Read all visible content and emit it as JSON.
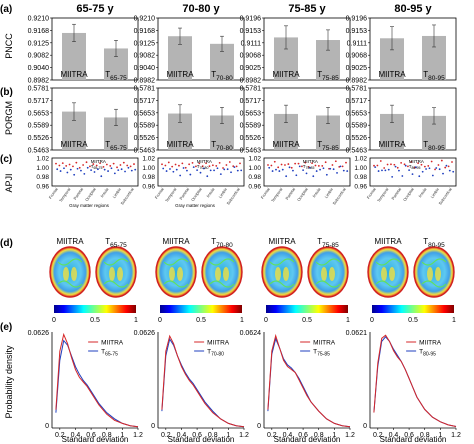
{
  "panel_labels": [
    "(a)",
    "(b)",
    "(c)",
    "(d)",
    "(e)"
  ],
  "age_groups": [
    "65-75 y",
    "70-80 y",
    "75-85 y",
    "80-95 y"
  ],
  "colors": {
    "bar": "#b4b4b4",
    "miitra": "#d62728",
    "t": "#1f3fbf",
    "axis": "#000000"
  },
  "chart_data": [
    {
      "type": "bar",
      "panel": "a",
      "ylabel": "PNCC",
      "panels": [
        {
          "ylim": [
            0.8982,
            0.921
          ],
          "ticks": [
            "0.9210",
            "0.9168",
            "0.9125",
            "0.9082",
            "0.9040",
            "0.8982"
          ],
          "categories": [
            "MIITRA",
            "T"
          ],
          "sub": [
            "",
            "65-75"
          ],
          "values": [
            0.9155,
            0.9098
          ],
          "errors": [
            0.0032,
            0.003
          ]
        },
        {
          "ylim": [
            0.8982,
            0.921
          ],
          "ticks": [
            "0.9210",
            "0.9168",
            "0.9125",
            "0.9082",
            "0.9040",
            "0.8982"
          ],
          "categories": [
            "MIITRA",
            "T"
          ],
          "sub": [
            "",
            "70-80"
          ],
          "values": [
            0.9143,
            0.9115
          ],
          "errors": [
            0.003,
            0.0028
          ]
        },
        {
          "ylim": [
            0.8982,
            0.9196
          ],
          "ticks": [
            "0.9196",
            "0.9153",
            "0.9111",
            "0.9068",
            "0.9025",
            "0.8982"
          ],
          "categories": [
            "MIITRA",
            "T"
          ],
          "sub": [
            "",
            "75-85"
          ],
          "values": [
            0.9129,
            0.912
          ],
          "errors": [
            0.004,
            0.0035
          ]
        },
        {
          "ylim": [
            0.8982,
            0.9196
          ],
          "ticks": [
            "0.9196",
            "0.9153",
            "0.9111",
            "0.9068",
            "0.9025",
            "0.8982"
          ],
          "categories": [
            "MIITRA",
            "T"
          ],
          "sub": [
            "",
            "80-95"
          ],
          "values": [
            0.9126,
            0.9134
          ],
          "errors": [
            0.004,
            0.0038
          ]
        }
      ]
    },
    {
      "type": "bar",
      "panel": "b",
      "ylabel": "PORGM",
      "panels": [
        {
          "ylim": [
            0.5463,
            0.5781
          ],
          "ticks": [
            "0.5781",
            "0.5717",
            "0.5653",
            "0.5589",
            "0.5526",
            "0.5463"
          ],
          "categories": [
            "MIITRA",
            "T"
          ],
          "sub": [
            "",
            "65-75"
          ],
          "values": [
            0.566,
            0.563
          ],
          "errors": [
            0.0045,
            0.0042
          ]
        },
        {
          "ylim": [
            0.5463,
            0.5781
          ],
          "ticks": [
            "0.5781",
            "0.5717",
            "0.5653",
            "0.5589",
            "0.5526",
            "0.5463"
          ],
          "categories": [
            "MIITRA",
            "T"
          ],
          "sub": [
            "",
            "70-80"
          ],
          "values": [
            0.565,
            0.564
          ],
          "errors": [
            0.0045,
            0.0042
          ]
        },
        {
          "ylim": [
            0.5463,
            0.5781
          ],
          "ticks": [
            "0.5781",
            "0.5717",
            "0.5653",
            "0.5589",
            "0.5526",
            "0.5463"
          ],
          "categories": [
            "MIITRA",
            "T"
          ],
          "sub": [
            "",
            "75-85"
          ],
          "values": [
            0.5648,
            0.564
          ],
          "errors": [
            0.0045,
            0.0042
          ]
        },
        {
          "ylim": [
            0.5463,
            0.5781
          ],
          "ticks": [
            "0.5781",
            "0.5717",
            "0.5653",
            "0.5589",
            "0.5526",
            "0.5463"
          ],
          "categories": [
            "MIITRA",
            "T"
          ],
          "sub": [
            "",
            "80-95"
          ],
          "values": [
            0.5648,
            0.5638
          ],
          "errors": [
            0.0045,
            0.0042
          ]
        }
      ]
    },
    {
      "type": "scatter",
      "panel": "c",
      "ylabel": "APJI",
      "ylim": [
        0.96,
        1.02
      ],
      "ticks": [
        "1.02",
        "1.00",
        "0.98",
        "0.96"
      ],
      "legend_names": [
        "MIITRA",
        "T"
      ],
      "legend_subs": [
        "65-75",
        "70-80",
        "75-85",
        "80-95"
      ],
      "xlabel_first": "Gray matter regions",
      "region_labels": [
        "Frontal",
        "Temporal",
        "Parietal",
        "Occipital",
        "Insula",
        "Limbic",
        "Subcortical"
      ],
      "miitra": [
        1.008,
        1.004,
        1.009,
        1.003,
        1.006,
        1.002,
        1.01,
        0.999,
        1.005,
        1.011,
        1.002,
        1.007,
        1.004,
        1.009,
        1.001,
        1.006,
        1.003,
        1.008,
        1.0,
        1.005,
        1.01,
        1.004,
        1.002,
        1.007
      ],
      "t": [
        0.996,
        0.992,
        0.998,
        0.989,
        0.995,
        0.984,
        0.997,
        0.993,
        0.986,
        0.999,
        0.994,
        0.99,
        0.996,
        0.981,
        0.995,
        0.992,
        0.998,
        0.987,
        0.994,
        0.996,
        0.991,
        0.999,
        0.993,
        0.995
      ]
    },
    {
      "type": "line",
      "panel": "e",
      "ylabel": "Probability density",
      "xlabel": "Standard deviation",
      "xlim": [
        0.1,
        1.2
      ],
      "xticks": [
        "0.2",
        "0.4",
        "0.6",
        "0.8",
        "1",
        "1.2"
      ],
      "panels": [
        {
          "ytop": "0.0626",
          "ymax": 0.0626,
          "sub": "65-75",
          "x": [
            0.15,
            0.2,
            0.25,
            0.3,
            0.35,
            0.4,
            0.45,
            0.5,
            0.55,
            0.6,
            0.65,
            0.7,
            0.8,
            0.9,
            1.0,
            1.1,
            1.2
          ],
          "miitra": [
            0.012,
            0.05,
            0.061,
            0.055,
            0.046,
            0.038,
            0.033,
            0.03,
            0.027,
            0.023,
            0.019,
            0.015,
            0.009,
            0.005,
            0.003,
            0.0015,
            0.0008
          ],
          "t": [
            0.01,
            0.044,
            0.057,
            0.054,
            0.047,
            0.04,
            0.035,
            0.031,
            0.028,
            0.024,
            0.02,
            0.016,
            0.01,
            0.006,
            0.003,
            0.0015,
            0.0008
          ]
        },
        {
          "ytop": "0.0626",
          "ymax": 0.0626,
          "sub": "70-80",
          "x": [
            0.15,
            0.2,
            0.25,
            0.3,
            0.35,
            0.4,
            0.45,
            0.5,
            0.55,
            0.6,
            0.65,
            0.7,
            0.8,
            0.9,
            1.0,
            1.1,
            1.2
          ],
          "miitra": [
            0.012,
            0.05,
            0.06,
            0.055,
            0.047,
            0.04,
            0.035,
            0.031,
            0.028,
            0.024,
            0.02,
            0.016,
            0.01,
            0.006,
            0.003,
            0.0015,
            0.0008
          ],
          "t": [
            0.011,
            0.047,
            0.058,
            0.054,
            0.047,
            0.041,
            0.036,
            0.032,
            0.029,
            0.025,
            0.021,
            0.017,
            0.011,
            0.006,
            0.003,
            0.0015,
            0.0008
          ]
        },
        {
          "ytop": "0.0624",
          "ymax": 0.0624,
          "sub": "75-85",
          "x": [
            0.15,
            0.2,
            0.25,
            0.3,
            0.35,
            0.4,
            0.45,
            0.5,
            0.55,
            0.6,
            0.65,
            0.7,
            0.8,
            0.9,
            1.0,
            1.1,
            1.2
          ],
          "miitra": [
            0.012,
            0.05,
            0.06,
            0.052,
            0.044,
            0.04,
            0.038,
            0.036,
            0.031,
            0.026,
            0.021,
            0.017,
            0.011,
            0.006,
            0.003,
            0.0015,
            0.0008
          ],
          "t": [
            0.011,
            0.048,
            0.058,
            0.052,
            0.045,
            0.041,
            0.039,
            0.036,
            0.032,
            0.027,
            0.022,
            0.017,
            0.011,
            0.006,
            0.003,
            0.0015,
            0.0008
          ]
        },
        {
          "ytop": "0.0621",
          "ymax": 0.0621,
          "sub": "80-95",
          "x": [
            0.15,
            0.2,
            0.25,
            0.3,
            0.35,
            0.4,
            0.45,
            0.5,
            0.55,
            0.6,
            0.65,
            0.7,
            0.8,
            0.9,
            1.0,
            1.1,
            1.2
          ],
          "miitra": [
            0.01,
            0.042,
            0.058,
            0.06,
            0.056,
            0.05,
            0.046,
            0.043,
            0.038,
            0.032,
            0.026,
            0.02,
            0.012,
            0.007,
            0.004,
            0.002,
            0.001
          ],
          "t": [
            0.01,
            0.04,
            0.056,
            0.059,
            0.056,
            0.051,
            0.047,
            0.043,
            0.038,
            0.032,
            0.026,
            0.02,
            0.012,
            0.007,
            0.004,
            0.002,
            0.001
          ]
        }
      ]
    }
  ],
  "brains": {
    "labels": [
      "MIITRA",
      "T"
    ],
    "subs": [
      "65-75",
      "70-80",
      "75-85",
      "80-95"
    ],
    "colorbar_ticks": [
      "0",
      "0.5",
      "1"
    ]
  }
}
